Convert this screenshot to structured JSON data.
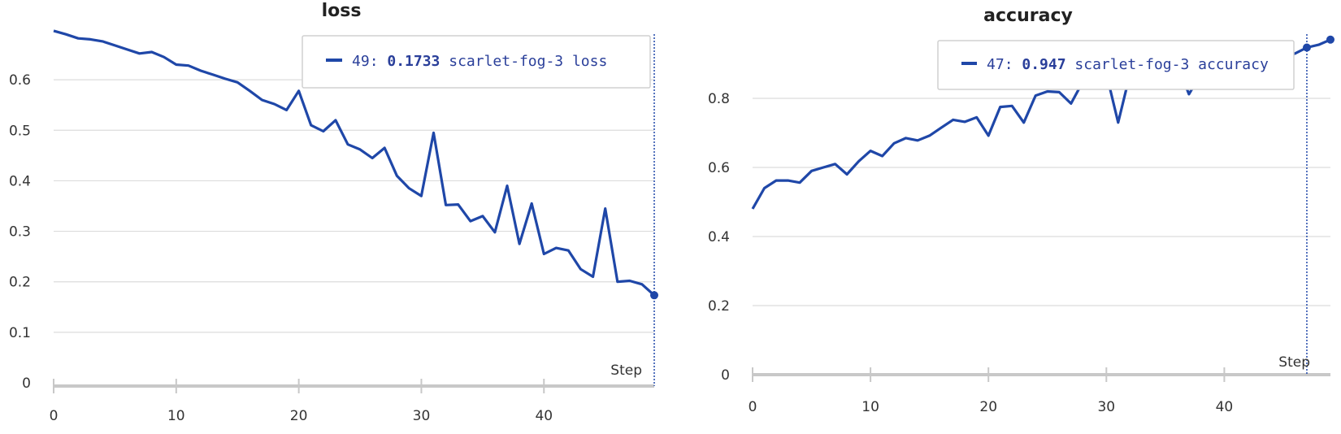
{
  "colors": {
    "series": "#1f47a8",
    "grid": "#dcdcdc",
    "axis": "#c8c8c8",
    "tooltip_border": "#d0d0d0"
  },
  "chart_data": [
    {
      "type": "line",
      "title": "loss",
      "xlabel": "Step",
      "xlim": [
        0,
        49
      ],
      "ylim": [
        0,
        0.7
      ],
      "xticks": [
        "0",
        "10",
        "20",
        "30",
        "40"
      ],
      "yticks": [
        "0",
        "0.1",
        "0.2",
        "0.3",
        "0.4",
        "0.5",
        "0.6"
      ],
      "grid": true,
      "series": [
        {
          "name": "scarlet-fog-3 loss",
          "x": [
            0,
            1,
            2,
            3,
            4,
            5,
            6,
            7,
            8,
            9,
            10,
            11,
            12,
            13,
            14,
            15,
            16,
            17,
            18,
            19,
            20,
            21,
            22,
            23,
            24,
            25,
            26,
            27,
            28,
            29,
            30,
            31,
            32,
            33,
            34,
            35,
            36,
            37,
            38,
            39,
            40,
            41,
            42,
            43,
            44,
            45,
            46,
            47,
            48,
            49
          ],
          "y": [
            0.697,
            0.69,
            0.682,
            0.68,
            0.676,
            0.668,
            0.66,
            0.652,
            0.655,
            0.645,
            0.63,
            0.628,
            0.618,
            0.61,
            0.602,
            0.595,
            0.578,
            0.56,
            0.552,
            0.54,
            0.578,
            0.51,
            0.498,
            0.52,
            0.472,
            0.462,
            0.445,
            0.465,
            0.41,
            0.385,
            0.37,
            0.495,
            0.352,
            0.353,
            0.32,
            0.33,
            0.298,
            0.39,
            0.275,
            0.355,
            0.255,
            0.267,
            0.262,
            0.225,
            0.21,
            0.345,
            0.2,
            0.202,
            0.195,
            0.1733
          ]
        }
      ],
      "tooltip": {
        "step": "49",
        "value": "0.1733",
        "label": "scarlet-fog-3 loss"
      }
    },
    {
      "type": "line",
      "title": "accuracy",
      "xlabel": "Step",
      "xlim": [
        0,
        49
      ],
      "ylim": [
        0,
        1.0
      ],
      "xticks": [
        "0",
        "10",
        "20",
        "30",
        "40"
      ],
      "yticks": [
        "0",
        "0.2",
        "0.4",
        "0.6",
        "0.8"
      ],
      "grid": true,
      "series": [
        {
          "name": "scarlet-fog-3 accuracy",
          "x": [
            0,
            1,
            2,
            3,
            4,
            5,
            6,
            7,
            8,
            9,
            10,
            11,
            12,
            13,
            14,
            15,
            16,
            17,
            18,
            19,
            20,
            21,
            22,
            23,
            24,
            25,
            26,
            27,
            28,
            29,
            30,
            31,
            32,
            33,
            34,
            35,
            36,
            37,
            38,
            39,
            40,
            41,
            42,
            43,
            44,
            45,
            46,
            47,
            48,
            49
          ],
          "y": [
            0.48,
            0.54,
            0.562,
            0.562,
            0.556,
            0.59,
            0.6,
            0.61,
            0.58,
            0.618,
            0.648,
            0.633,
            0.67,
            0.685,
            0.678,
            0.692,
            0.715,
            0.738,
            0.732,
            0.745,
            0.692,
            0.775,
            0.778,
            0.73,
            0.808,
            0.82,
            0.818,
            0.785,
            0.848,
            0.87,
            0.872,
            0.73,
            0.87,
            0.88,
            0.885,
            0.89,
            0.9,
            0.812,
            0.87,
            0.84,
            0.88,
            0.89,
            0.9,
            0.91,
            0.915,
            0.92,
            0.93,
            0.947,
            0.955,
            0.97
          ]
        }
      ],
      "tooltip": {
        "step": "47",
        "value": "0.947",
        "label": "scarlet-fog-3 accuracy"
      }
    }
  ]
}
